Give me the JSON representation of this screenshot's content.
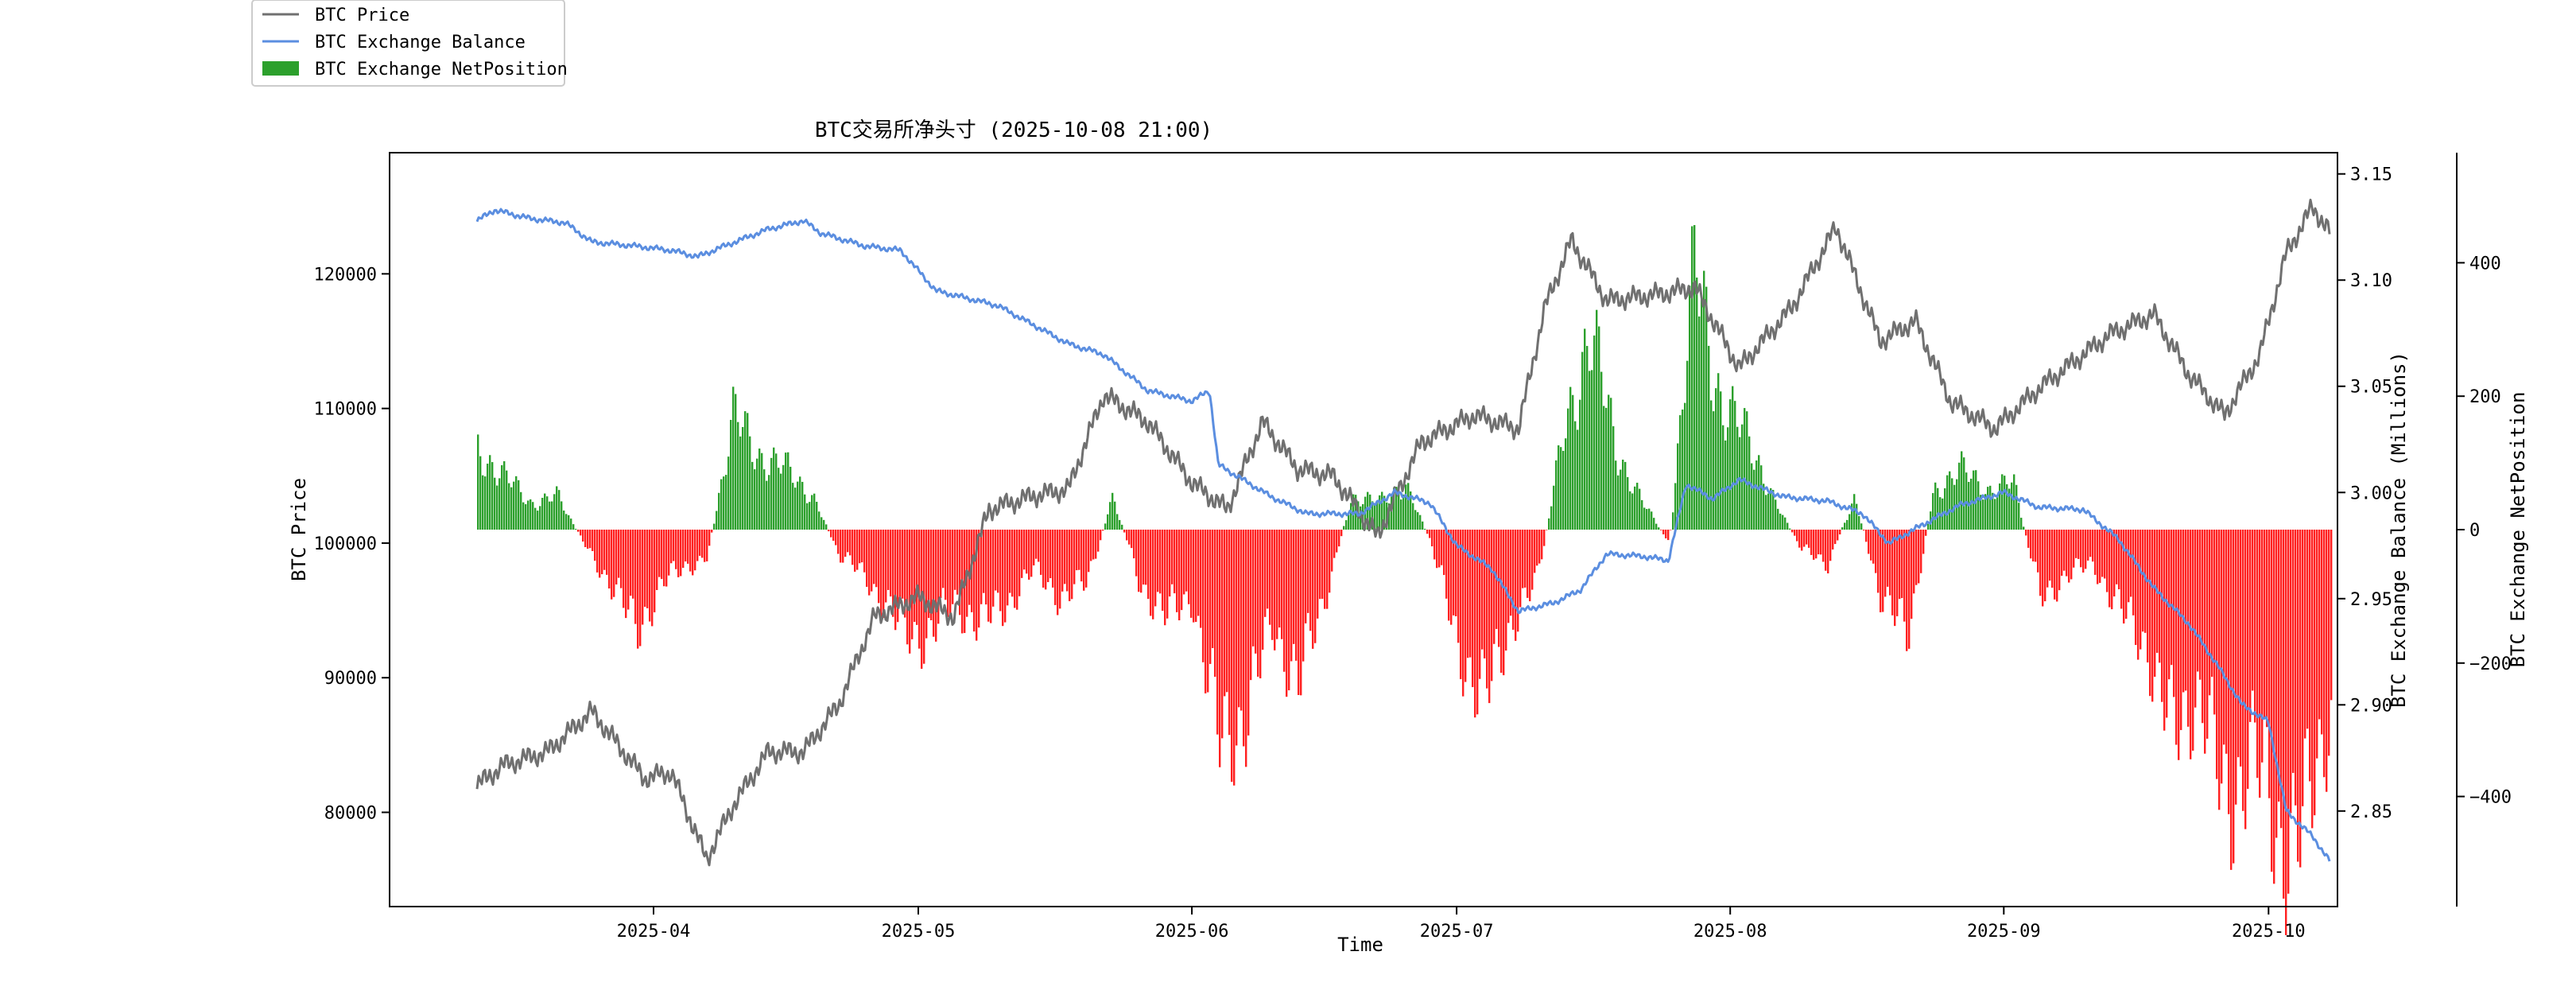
{
  "chart_data": {
    "type": "line",
    "title": "BTC交易所净头寸 (2025-10-08 21:00)",
    "xlabel": "Time",
    "ylabel_left": "BTC Price",
    "ylabel_right": "BTC Exchange Balance (Millions)",
    "ylabel_right2": "BTC Exchange NetPosition",
    "x_ticks": [
      "2025-04",
      "2025-05",
      "2025-06",
      "2025-07",
      "2025-08",
      "2025-09",
      "2025-10"
    ],
    "x_range": [
      "2025-03-12",
      "2025-10-08"
    ],
    "price_axis": {
      "range": [
        73000,
        129000
      ],
      "ticks": [
        80000,
        90000,
        100000,
        110000,
        120000
      ]
    },
    "balance_axis": {
      "range": [
        2.805,
        3.16
      ],
      "ticks": [
        2.85,
        2.9,
        2.95,
        3.0,
        3.05,
        3.1,
        3.15
      ]
    },
    "netposition_axis": {
      "range": [
        -565,
        565
      ],
      "ticks": [
        -400,
        -200,
        0,
        200,
        400
      ]
    },
    "legend": {
      "placement": "top-left-outside",
      "entries": [
        {
          "label": "BTC Price",
          "color": "#707070",
          "kind": "line"
        },
        {
          "label": "BTC Exchange Balance",
          "color": "#5b8ee0",
          "kind": "line"
        },
        {
          "label": "BTC Exchange NetPosition",
          "color": "#2ca02c",
          "kind": "bar"
        }
      ]
    },
    "series": [
      {
        "name": "BTC Price",
        "color": "#707070",
        "points": [
          [
            "2025-03-12",
            82000
          ],
          [
            "2025-03-15",
            83500
          ],
          [
            "2025-03-20",
            84500
          ],
          [
            "2025-03-25",
            87500
          ],
          [
            "2025-03-31",
            82500
          ],
          [
            "2025-04-03",
            83000
          ],
          [
            "2025-04-07",
            76500
          ],
          [
            "2025-04-10",
            80500
          ],
          [
            "2025-04-14",
            84500
          ],
          [
            "2025-04-18",
            84500
          ],
          [
            "2025-04-22",
            88000
          ],
          [
            "2025-04-26",
            94500
          ],
          [
            "2025-05-01",
            96000
          ],
          [
            "2025-05-05",
            94500
          ],
          [
            "2025-05-09",
            102500
          ],
          [
            "2025-05-14",
            103500
          ],
          [
            "2025-05-18",
            104000
          ],
          [
            "2025-05-22",
            111000
          ],
          [
            "2025-05-27",
            109000
          ],
          [
            "2025-06-01",
            104500
          ],
          [
            "2025-06-05",
            102500
          ],
          [
            "2025-06-09",
            109000
          ],
          [
            "2025-06-13",
            105500
          ],
          [
            "2025-06-17",
            105000
          ],
          [
            "2025-06-22",
            100500
          ],
          [
            "2025-06-27",
            107500
          ],
          [
            "2025-07-03",
            109500
          ],
          [
            "2025-07-08",
            108500
          ],
          [
            "2025-07-11",
            117500
          ],
          [
            "2025-07-14",
            122500
          ],
          [
            "2025-07-18",
            118000
          ],
          [
            "2025-07-24",
            118500
          ],
          [
            "2025-07-28",
            119000
          ],
          [
            "2025-08-02",
            113000
          ],
          [
            "2025-08-08",
            117500
          ],
          [
            "2025-08-13",
            123500
          ],
          [
            "2025-08-18",
            115000
          ],
          [
            "2025-08-22",
            116500
          ],
          [
            "2025-08-26",
            110500
          ],
          [
            "2025-08-31",
            108500
          ],
          [
            "2025-09-05",
            111500
          ],
          [
            "2025-09-13",
            115500
          ],
          [
            "2025-09-18",
            117000
          ],
          [
            "2025-09-22",
            112500
          ],
          [
            "2025-09-26",
            109500
          ],
          [
            "2025-09-30",
            114000
          ],
          [
            "2025-10-03",
            121500
          ],
          [
            "2025-10-06",
            125000
          ],
          [
            "2025-10-08",
            123000
          ]
        ]
      },
      {
        "name": "BTC Exchange Balance",
        "color": "#5b8ee0",
        "points": [
          [
            "2025-03-12",
            3.128
          ],
          [
            "2025-03-14",
            3.133
          ],
          [
            "2025-03-18",
            3.129
          ],
          [
            "2025-03-22",
            3.127
          ],
          [
            "2025-03-25",
            3.118
          ],
          [
            "2025-03-30",
            3.116
          ],
          [
            "2025-04-03",
            3.114
          ],
          [
            "2025-04-06",
            3.111
          ],
          [
            "2025-04-09",
            3.116
          ],
          [
            "2025-04-14",
            3.124
          ],
          [
            "2025-04-18",
            3.128
          ],
          [
            "2025-04-20",
            3.122
          ],
          [
            "2025-04-25",
            3.116
          ],
          [
            "2025-04-29",
            3.114
          ],
          [
            "2025-05-03",
            3.095
          ],
          [
            "2025-05-10",
            3.088
          ],
          [
            "2025-05-14",
            3.079
          ],
          [
            "2025-05-18",
            3.07
          ],
          [
            "2025-05-22",
            3.065
          ],
          [
            "2025-05-27",
            3.048
          ],
          [
            "2025-06-01",
            3.043
          ],
          [
            "2025-06-03",
            3.048
          ],
          [
            "2025-06-04",
            3.013
          ],
          [
            "2025-06-10",
            2.998
          ],
          [
            "2025-06-14",
            2.99
          ],
          [
            "2025-06-20",
            2.99
          ],
          [
            "2025-06-24",
            3.0
          ],
          [
            "2025-06-28",
            2.995
          ],
          [
            "2025-07-01",
            2.975
          ],
          [
            "2025-07-05",
            2.964
          ],
          [
            "2025-07-08",
            2.944
          ],
          [
            "2025-07-12",
            2.948
          ],
          [
            "2025-07-15",
            2.954
          ],
          [
            "2025-07-18",
            2.971
          ],
          [
            "2025-07-22",
            2.97
          ],
          [
            "2025-07-25",
            2.968
          ],
          [
            "2025-07-27",
            3.004
          ],
          [
            "2025-07-30",
            2.997
          ],
          [
            "2025-08-02",
            3.006
          ],
          [
            "2025-08-07",
            2.998
          ],
          [
            "2025-08-12",
            2.996
          ],
          [
            "2025-08-16",
            2.99
          ],
          [
            "2025-08-19",
            2.976
          ],
          [
            "2025-08-22",
            2.983
          ],
          [
            "2025-08-27",
            2.994
          ],
          [
            "2025-09-01",
            3.0
          ],
          [
            "2025-09-05",
            2.993
          ],
          [
            "2025-09-10",
            2.992
          ],
          [
            "2025-09-14",
            2.978
          ],
          [
            "2025-09-18",
            2.955
          ],
          [
            "2025-09-22",
            2.938
          ],
          [
            "2025-09-25",
            2.92
          ],
          [
            "2025-09-28",
            2.9
          ],
          [
            "2025-10-01",
            2.892
          ],
          [
            "2025-10-03",
            2.85
          ],
          [
            "2025-10-06",
            2.838
          ],
          [
            "2025-10-08",
            2.826
          ]
        ]
      },
      {
        "name": "BTC Exchange NetPosition",
        "kind": "bar",
        "color_positive": "#2ca02c",
        "color_negative": "#ff2020",
        "points": [
          [
            "2025-03-12",
            120
          ],
          [
            "2025-03-15",
            80
          ],
          [
            "2025-03-18",
            40
          ],
          [
            "2025-03-21",
            50
          ],
          [
            "2025-03-24",
            -20
          ],
          [
            "2025-03-27",
            -80
          ],
          [
            "2025-03-30",
            -150
          ],
          [
            "2025-04-02",
            -80
          ],
          [
            "2025-04-04",
            -60
          ],
          [
            "2025-04-07",
            -40
          ],
          [
            "2025-04-10",
            170
          ],
          [
            "2025-04-13",
            110
          ],
          [
            "2025-04-16",
            90
          ],
          [
            "2025-04-19",
            50
          ],
          [
            "2025-04-22",
            -40
          ],
          [
            "2025-04-25",
            -70
          ],
          [
            "2025-04-29",
            -150
          ],
          [
            "2025-05-02",
            -160
          ],
          [
            "2025-05-05",
            -110
          ],
          [
            "2025-05-08",
            -140
          ],
          [
            "2025-05-11",
            -110
          ],
          [
            "2025-05-14",
            -60
          ],
          [
            "2025-05-17",
            -100
          ],
          [
            "2025-05-20",
            -80
          ],
          [
            "2025-05-23",
            50
          ],
          [
            "2025-05-26",
            -80
          ],
          [
            "2025-05-29",
            -130
          ],
          [
            "2025-06-01",
            -100
          ],
          [
            "2025-06-04",
            -320
          ],
          [
            "2025-06-07",
            -280
          ],
          [
            "2025-06-10",
            -140
          ],
          [
            "2025-06-13",
            -230
          ],
          [
            "2025-06-16",
            -100
          ],
          [
            "2025-06-19",
            50
          ],
          [
            "2025-06-22",
            40
          ],
          [
            "2025-06-25",
            70
          ],
          [
            "2025-06-28",
            -20
          ],
          [
            "2025-07-01",
            -170
          ],
          [
            "2025-07-04",
            -260
          ],
          [
            "2025-07-07",
            -140
          ],
          [
            "2025-07-10",
            -80
          ],
          [
            "2025-07-13",
            140
          ],
          [
            "2025-07-16",
            300
          ],
          [
            "2025-07-19",
            120
          ],
          [
            "2025-07-22",
            40
          ],
          [
            "2025-07-25",
            -20
          ],
          [
            "2025-07-28",
            400
          ],
          [
            "2025-07-31",
            180
          ],
          [
            "2025-08-03",
            140
          ],
          [
            "2025-08-06",
            40
          ],
          [
            "2025-08-09",
            -30
          ],
          [
            "2025-08-12",
            -50
          ],
          [
            "2025-08-15",
            50
          ],
          [
            "2025-08-18",
            -100
          ],
          [
            "2025-08-21",
            -160
          ],
          [
            "2025-08-24",
            60
          ],
          [
            "2025-08-27",
            90
          ],
          [
            "2025-08-30",
            60
          ],
          [
            "2025-09-02",
            70
          ],
          [
            "2025-09-05",
            -100
          ],
          [
            "2025-09-08",
            -70
          ],
          [
            "2025-09-11",
            -50
          ],
          [
            "2025-09-14",
            -120
          ],
          [
            "2025-09-17",
            -170
          ],
          [
            "2025-09-20",
            -310
          ],
          [
            "2025-09-23",
            -240
          ],
          [
            "2025-09-26",
            -420
          ],
          [
            "2025-09-29",
            -330
          ],
          [
            "2025-10-02",
            -460
          ],
          [
            "2025-10-05",
            -450
          ],
          [
            "2025-10-08",
            -260
          ]
        ]
      }
    ]
  }
}
